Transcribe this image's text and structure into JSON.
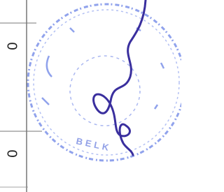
{
  "cells": [
    "0",
    "0"
  ],
  "stamp": {
    "text": "BELK"
  }
}
